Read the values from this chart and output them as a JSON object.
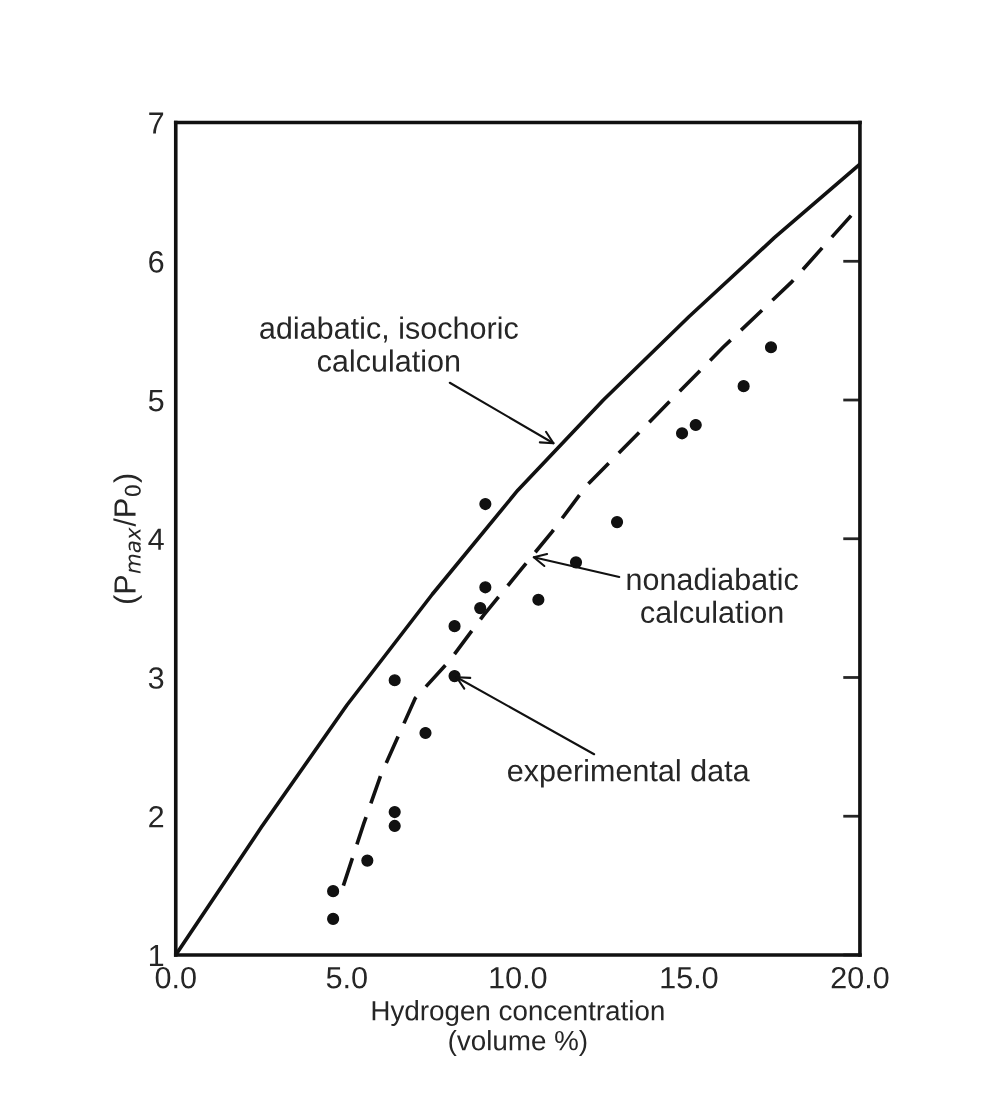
{
  "chart_data": {
    "type": "line",
    "xlabel": "Hydrogen concentration\n(volume %)",
    "ylabel": "(P$_{max}$/P$_{0}$)",
    "xlim": [
      0,
      20
    ],
    "ylim": [
      1,
      7
    ],
    "xticks": [
      {
        "value": 0,
        "label": "0.0"
      },
      {
        "value": 5,
        "label": "5.0"
      },
      {
        "value": 10,
        "label": "10.0"
      },
      {
        "value": 15,
        "label": "15.0"
      },
      {
        "value": 20,
        "label": "20.0"
      }
    ],
    "yticks": [
      1,
      2,
      3,
      4,
      5,
      6,
      7
    ],
    "grid": false,
    "legend": false,
    "series": [
      {
        "color": "#111111",
        "line_style": "solid",
        "marker": "none",
        "x": [
          0,
          2.5,
          5,
          7.5,
          10,
          12.5,
          15,
          17.5,
          20
        ],
        "values": [
          1,
          1.92,
          2.8,
          3.6,
          4.35,
          5.0,
          5.6,
          6.17,
          6.7
        ]
      },
      {
        "color": "#111111",
        "line_style": "dashed",
        "marker": "none",
        "x": [
          4.9,
          5.5,
          6,
          7,
          8,
          9,
          10,
          11,
          12,
          14,
          16,
          18,
          20
        ],
        "values": [
          1.5,
          1.95,
          2.3,
          2.85,
          3.12,
          3.45,
          3.75,
          4.05,
          4.38,
          4.88,
          5.38,
          5.85,
          6.4
        ]
      },
      {
        "type": "scatter",
        "color": "#111111",
        "marker": "circle",
        "x": [
          4.6,
          4.6,
          5.6,
          6.4,
          6.4,
          6.4,
          7.3,
          8.15,
          8.15,
          8.9,
          9.05,
          9.05,
          10.6,
          11.7,
          12.9,
          14.8,
          15.2,
          16.6,
          17.4
        ],
        "values": [
          1.26,
          1.46,
          1.68,
          1.93,
          2.03,
          2.98,
          2.6,
          3.01,
          3.37,
          3.5,
          3.65,
          4.25,
          3.56,
          3.83,
          4.12,
          4.76,
          4.82,
          5.1,
          5.38
        ]
      }
    ],
    "annotations": [
      {
        "text": "adiabatic, isochoric\ncalculation",
        "x": 11.1,
        "y": 4.68
      },
      {
        "text": "nonadiabatic\ncalculation",
        "x": 10.4,
        "y": 3.87
      },
      {
        "text": "experimental data",
        "x": 8.15,
        "y": 3.01
      }
    ]
  }
}
